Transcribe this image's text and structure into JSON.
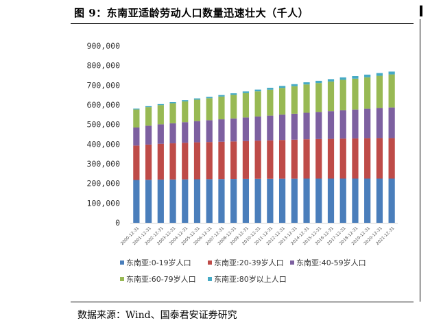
{
  "title": "图 9：东南亚适龄劳动人口数量迅速壮大（千人）",
  "source": "数据来源：Wind、国泰君安证券研究",
  "chart_data": {
    "type": "bar",
    "stacked": true,
    "title": "",
    "xlabel": "",
    "ylabel": "",
    "ylim": [
      0,
      900000
    ],
    "yticks": [
      0,
      100000,
      200000,
      300000,
      400000,
      500000,
      600000,
      700000,
      800000,
      900000
    ],
    "ytick_labels": [
      "0",
      "100,000",
      "200,000",
      "300,000",
      "400,000",
      "500,000",
      "600,000",
      "700,000",
      "800,000",
      "900,000"
    ],
    "grid": false,
    "legend_position": "bottom",
    "categories": [
      "2000-12-31",
      "2001-12-31",
      "2002-12-31",
      "2003-12-31",
      "2004-12-31",
      "2005-12-31",
      "2006-12-31",
      "2007-12-31",
      "2008-12-31",
      "2009-12-31",
      "2010-12-31",
      "2011-12-31",
      "2012-12-31",
      "2013-12-31",
      "2014-12-31",
      "2015-12-31",
      "2016-12-31",
      "2017-12-31",
      "2018-12-31",
      "2019-12-31",
      "2020-12-31",
      "2021-12-31"
    ],
    "series": [
      {
        "name": "东南亚:0-19岁人口",
        "color": "#4a7ebb",
        "values": [
          218000,
          219000,
          220000,
          220500,
          221000,
          221500,
          222000,
          222500,
          223000,
          223500,
          224000,
          224000,
          224500,
          224500,
          225000,
          225000,
          225000,
          225000,
          225000,
          225000,
          225000,
          225000
        ]
      },
      {
        "name": "东南亚:20-39岁人口",
        "color": "#be4b48",
        "values": [
          175000,
          179000,
          182000,
          184000,
          186000,
          188000,
          189000,
          190000,
          191000,
          192500,
          194000,
          195500,
          197000,
          198500,
          200000,
          201000,
          202000,
          203500,
          204500,
          205500,
          206000,
          206000
        ]
      },
      {
        "name": "东南亚:40-59岁人口",
        "color": "#7d60a0",
        "values": [
          92000,
          96000,
          99000,
          102000,
          105000,
          108000,
          111000,
          114000,
          117000,
          120000,
          123000,
          126000,
          129000,
          132000,
          135000,
          138000,
          141000,
          144000,
          147000,
          150000,
          153000,
          156000
        ]
      },
      {
        "name": "东南亚:60-79岁人口",
        "color": "#98b954",
        "values": [
          92000,
          95000,
          98000,
          102000,
          106000,
          109000,
          112000,
          116000,
          120000,
          124000,
          128000,
          132000,
          136000,
          140000,
          144000,
          147000,
          151000,
          155000,
          157000,
          160000,
          164000,
          168000
        ]
      },
      {
        "name": "东南亚:80岁以上人口",
        "color": "#46aac5",
        "values": [
          4000,
          4500,
          5000,
          5500,
          6000,
          6500,
          7000,
          7500,
          8000,
          8500,
          9000,
          9500,
          10000,
          10500,
          11000,
          11500,
          12000,
          12500,
          13000,
          13500,
          14000,
          14500
        ]
      }
    ]
  }
}
